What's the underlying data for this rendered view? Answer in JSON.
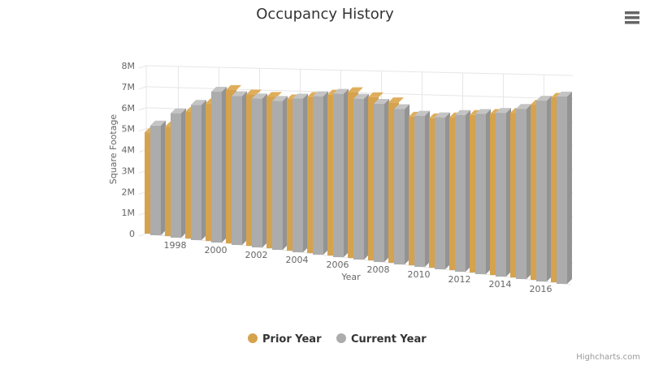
{
  "title": "Occupancy History",
  "credits": "Highcharts.com",
  "menu": {
    "icon": "hamburger-icon"
  },
  "colors": {
    "prior": {
      "front": "#D5A24E",
      "top": "#DFAE5C",
      "side": "#B28441"
    },
    "current": {
      "front": "#ACACAC",
      "top": "#C4C4C4",
      "side": "#939393"
    },
    "grid": "#E6E6E6",
    "tick_text": "#666666",
    "title_text": "#333333"
  },
  "chart_data": {
    "type": "bar",
    "subtype": "3d-column-grouped",
    "title": "Occupancy History",
    "xlabel": "Year",
    "ylabel": "Square Footage",
    "ylim": [
      0,
      8
    ],
    "y_unit": "millions of square feet",
    "ytick_labels": [
      "0",
      "1M",
      "2M",
      "3M",
      "4M",
      "5M",
      "6M",
      "7M",
      "8M"
    ],
    "xtick_labels": [
      "1998",
      "2000",
      "2002",
      "2004",
      "2006",
      "2008",
      "2010",
      "2012",
      "2014",
      "2016"
    ],
    "grid": true,
    "legend_position": "bottom",
    "categories": [
      1997,
      1998,
      1999,
      2000,
      2001,
      2002,
      2003,
      2004,
      2005,
      2006,
      2007,
      2008,
      2009,
      2010,
      2011,
      2012,
      2013,
      2014,
      2015,
      2016,
      2017
    ],
    "series": [
      {
        "name": "Prior Year",
        "color": "#D5A24E",
        "values": [
          4.8,
          5.1,
          5.8,
          6.2,
          6.8,
          6.6,
          6.5,
          6.4,
          6.5,
          6.6,
          6.7,
          6.5,
          6.3,
          5.75,
          5.7,
          5.75,
          5.85,
          5.9,
          5.95,
          6.25,
          6.5
        ]
      },
      {
        "name": "Current Year",
        "color": "#ACACAC",
        "values": [
          5.2,
          5.8,
          6.2,
          6.8,
          6.6,
          6.5,
          6.4,
          6.5,
          6.6,
          6.7,
          6.5,
          6.3,
          6.1,
          5.85,
          5.8,
          5.9,
          5.95,
          6.0,
          6.15,
          6.45,
          6.6
        ]
      }
    ]
  }
}
